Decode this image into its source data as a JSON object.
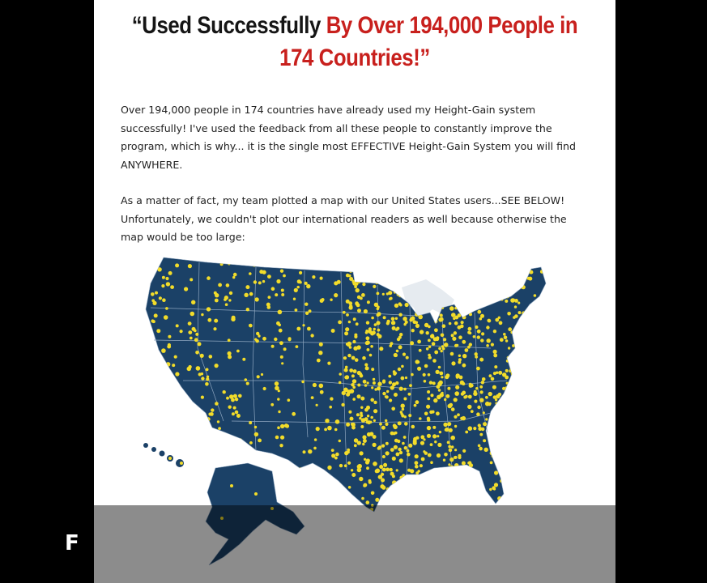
{
  "headline": {
    "black_part": "“Used Successfully",
    "red_part_1": "By Over 194,000 People in",
    "red_part_2": "174 Countries!”"
  },
  "paragraph1": "Over 194,000 people in 174 countries have already used my Height-Gain system successfully! I've used the feedback from all these people to constantly improve the program, which is why... it is the single most EFFECTIVE Height-Gain System you will find ANYWHERE.",
  "paragraph2": "As a matter of fact, my team plotted a map with our United States users...SEE BELOW! Unfortunately, we couldn't plot our international readers as well because otherwise the map would be too large:",
  "map": {
    "land_color": "#1b4167",
    "dot_color": "#f2dc2a",
    "border_color": "#8fa7c0"
  },
  "corner_logo": "F"
}
